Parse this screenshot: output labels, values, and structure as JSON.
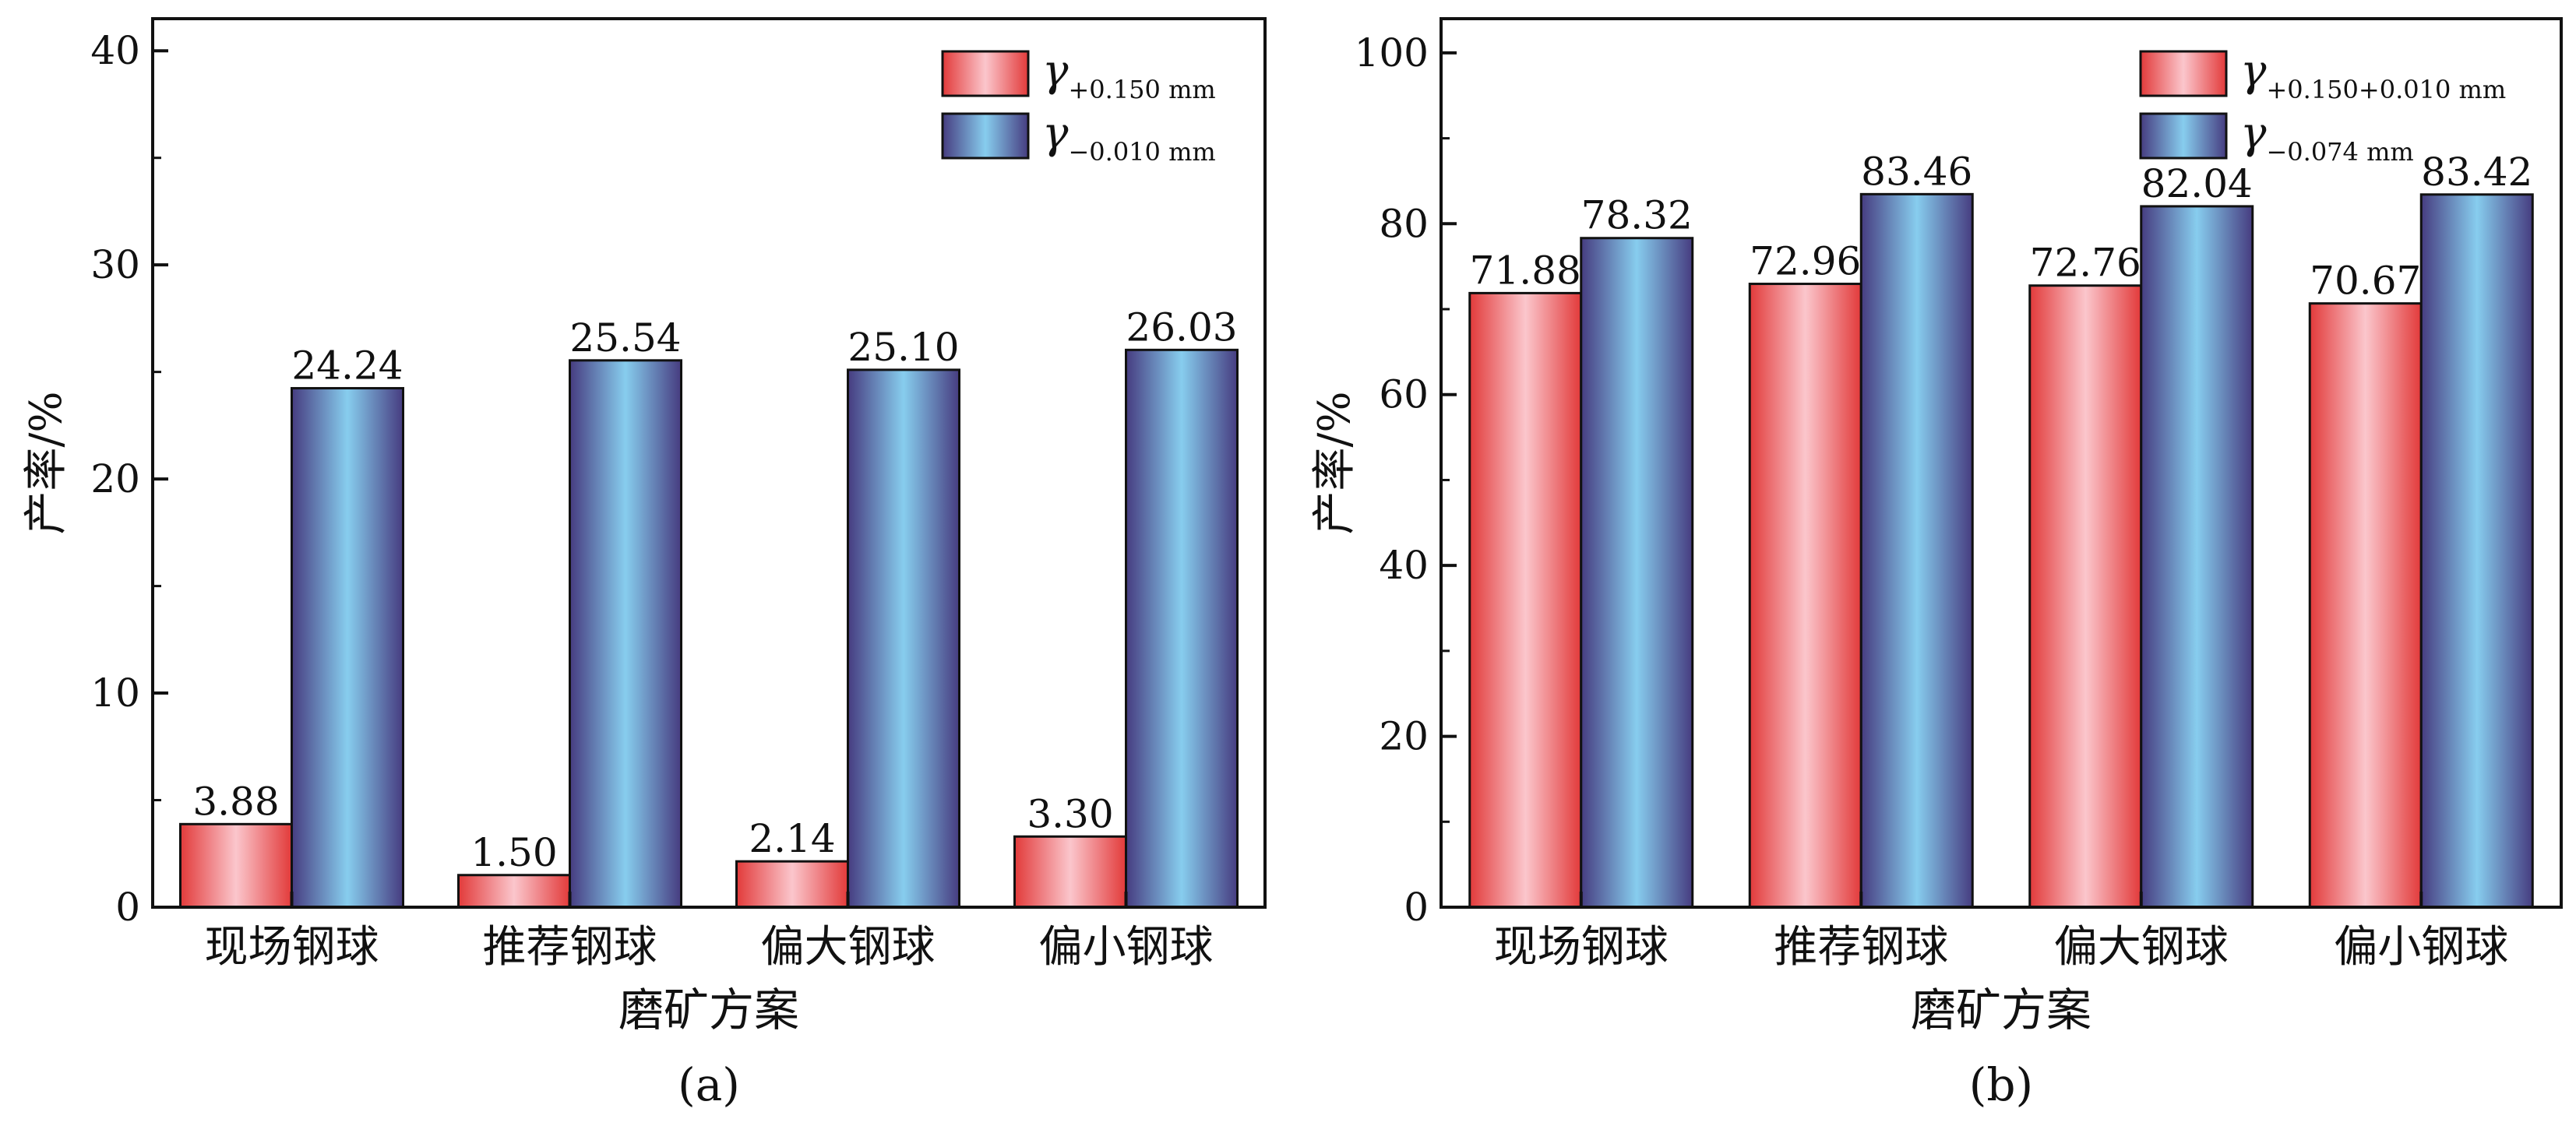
{
  "colors": {
    "red_dark": "#e23a3a",
    "red_light": "#fbc6cc",
    "blue_dark": "#463c80",
    "blue_light": "#87cdee",
    "axis": "#111111"
  },
  "chart_data": [
    {
      "type": "bar",
      "panel_label": "(a)",
      "categories": [
        "现场钢球",
        "推荐钢球",
        "偏大钢球",
        "偏小钢球"
      ],
      "series": [
        {
          "name": "γ+0.150 mm",
          "symbol": "γ",
          "subscript": "+0.150 mm",
          "color": "red",
          "values": [
            3.88,
            1.5,
            2.14,
            3.3
          ]
        },
        {
          "name": "γ−0.010 mm",
          "symbol": "γ",
          "subscript": "−0.010 mm",
          "color": "blue",
          "values": [
            24.24,
            25.54,
            25.1,
            26.03
          ]
        }
      ],
      "data_labels": [
        [
          "3.88",
          "1.50",
          "2.14",
          "3.30"
        ],
        [
          "24.24",
          "25.54",
          "25.10",
          "26.03"
        ]
      ],
      "ylim": [
        0,
        41.5
      ],
      "yticks": [
        0,
        10,
        20,
        30,
        40
      ],
      "ylabel": "产率/%",
      "xlabel": "磨矿方案",
      "legend": "top-right",
      "grid": false
    },
    {
      "type": "bar",
      "panel_label": "(b)",
      "categories": [
        "现场钢球",
        "推荐钢球",
        "偏大钢球",
        "偏小钢球"
      ],
      "series": [
        {
          "name": "γ+0.150+0.010 mm",
          "symbol": "γ",
          "subscript": "+0.150+0.010 mm",
          "color": "red",
          "values": [
            71.88,
            72.96,
            72.76,
            70.67
          ]
        },
        {
          "name": "γ−0.074 mm",
          "symbol": "γ",
          "subscript": "−0.074 mm",
          "color": "blue",
          "values": [
            78.32,
            83.46,
            82.04,
            83.42
          ]
        }
      ],
      "data_labels": [
        [
          "71.88",
          "72.96",
          "72.76",
          "70.67"
        ],
        [
          "78.32",
          "83.46",
          "82.04",
          "83.42"
        ]
      ],
      "ylim": [
        0,
        104
      ],
      "yticks": [
        0,
        20,
        40,
        60,
        80,
        100
      ],
      "ylabel": "产率/%",
      "xlabel": "磨矿方案",
      "legend": "top-right",
      "grid": false
    }
  ]
}
